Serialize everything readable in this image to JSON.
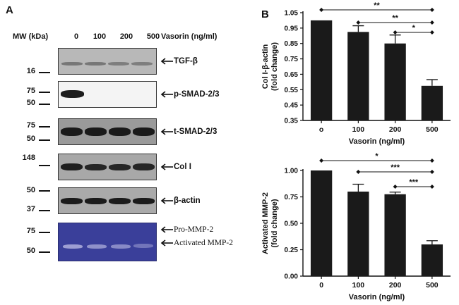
{
  "panel_a": {
    "letter": "A",
    "mw_header": "MW (kDa)",
    "lane_labels": [
      "0",
      "100",
      "200",
      "500"
    ],
    "lane_header": "Vasorin (ng/ml)",
    "blots": [
      {
        "label": "TGF-β",
        "mw": [
          "16"
        ],
        "band_intensity": [
          0.45,
          0.45,
          0.4,
          0.4
        ]
      },
      {
        "label": "p-SMAD-2/3",
        "mw": [
          "75",
          "50"
        ],
        "band_intensity": [
          0.95,
          0.0,
          0.0,
          0.0
        ]
      },
      {
        "label": "t-SMAD-2/3",
        "mw": [
          "75",
          "50"
        ],
        "band_intensity": [
          0.95,
          0.95,
          0.95,
          0.95
        ]
      },
      {
        "label": "Col I",
        "mw": [
          "148"
        ],
        "band_intensity": [
          0.9,
          0.85,
          0.85,
          0.85
        ]
      },
      {
        "label": "β-actin",
        "mw": [
          "50",
          "37"
        ],
        "band_intensity": [
          0.95,
          0.95,
          0.95,
          0.95
        ]
      },
      {
        "label_top": "Pro-MMP-2",
        "label_bottom": "Activated MMP-2",
        "mw": [
          "75",
          "50"
        ],
        "band_intensity": [
          0.7,
          0.6,
          0.55,
          0.4
        ]
      }
    ]
  },
  "panel_b": {
    "letter": "B",
    "chart_data": [
      {
        "type": "bar",
        "categories": [
          "o",
          "100",
          "200",
          "500"
        ],
        "values": [
          1.0,
          0.925,
          0.85,
          0.575
        ],
        "errors": [
          0.0,
          0.04,
          0.055,
          0.04
        ],
        "xlabel": "Vasorin (ng/ml)",
        "ylabel_lines": [
          "Col I-β-actin",
          "(fold change)"
        ],
        "ylim": [
          0.35,
          1.05
        ],
        "yticks": [
          "0.35",
          "0.45",
          "0.55",
          "0.65",
          "0.75",
          "0.85",
          "0.95",
          "1.05"
        ],
        "ytick_values": [
          0.35,
          0.45,
          0.55,
          0.65,
          0.75,
          0.85,
          0.95,
          1.05
        ],
        "bar_color": "#1a1a1a",
        "significance": [
          {
            "from": 0,
            "to": 3,
            "label": "**"
          },
          {
            "from": 1,
            "to": 3,
            "label": "**"
          },
          {
            "from": 2,
            "to": 3,
            "label": "*"
          }
        ]
      },
      {
        "type": "bar",
        "categories": [
          "0",
          "100",
          "200",
          "500"
        ],
        "values": [
          1.0,
          0.8,
          0.775,
          0.3
        ],
        "errors": [
          0.0,
          0.07,
          0.02,
          0.035
        ],
        "xlabel": "Vasorin (ng/ml)",
        "ylabel_lines": [
          "Activated MMP-2",
          "(fold change)"
        ],
        "ylim": [
          0.0,
          1.0
        ],
        "yticks": [
          "0.00",
          "0.25",
          "0.50",
          "0.75",
          "1.00"
        ],
        "ytick_values": [
          0.0,
          0.25,
          0.5,
          0.75,
          1.0
        ],
        "bar_color": "#1a1a1a",
        "significance": [
          {
            "from": 0,
            "to": 3,
            "label": "*"
          },
          {
            "from": 1,
            "to": 3,
            "label": "***"
          },
          {
            "from": 2,
            "to": 3,
            "label": "***"
          }
        ]
      }
    ]
  }
}
